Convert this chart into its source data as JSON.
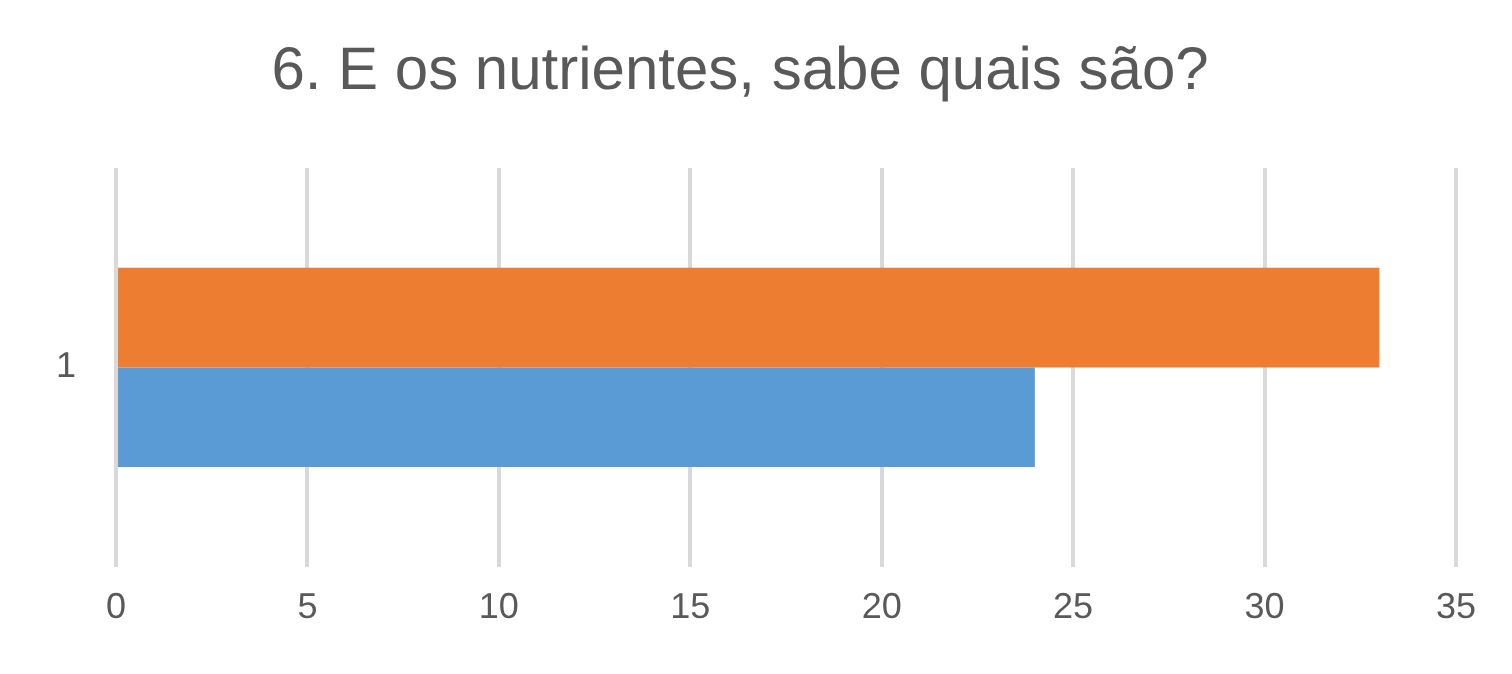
{
  "chart_data": {
    "type": "bar",
    "orientation": "horizontal",
    "title": "6. E os nutrientes, sabe quais são?",
    "categories": [
      "1"
    ],
    "series": [
      {
        "color": "#ed7d31",
        "values": [
          33
        ]
      },
      {
        "color": "#5b9bd5",
        "values": [
          24
        ]
      }
    ],
    "xlim": [
      0,
      35
    ],
    "xticks": [
      0,
      5,
      10,
      15,
      20,
      25,
      30,
      35
    ],
    "grid": "x",
    "legend": false
  }
}
